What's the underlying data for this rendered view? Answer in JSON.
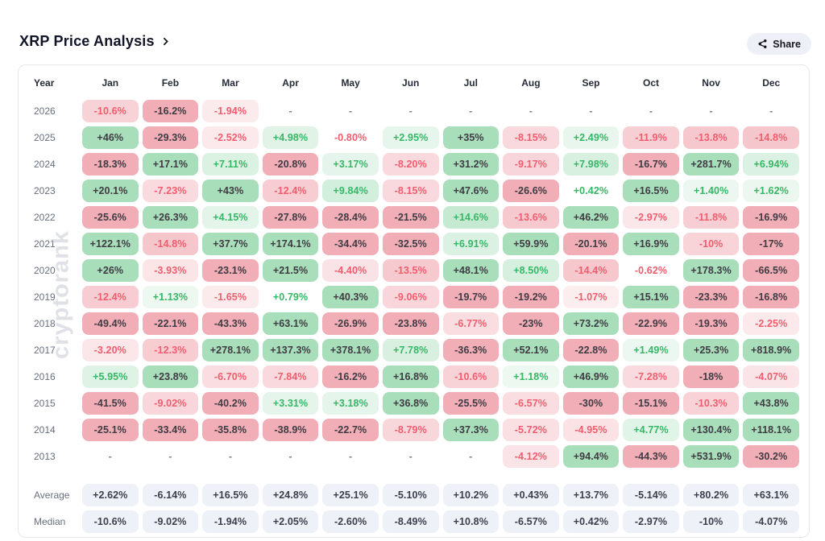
{
  "header": {
    "title": "XRP Price Analysis",
    "share_label": "Share"
  },
  "watermark": "cryptorank",
  "colors": {
    "positive_text": "#35b866",
    "negative_text": "#f25d6e",
    "strong_positive_bg": "#a9debb",
    "strong_negative_bg": "#f1aeb7",
    "strong_text": "#3e3b43",
    "dash_text": "#7b8494",
    "summary_bg": "#eef2f8"
  },
  "chart_data": {
    "type": "heatmap",
    "title": "XRP Price Analysis",
    "columns": [
      "Year",
      "Jan",
      "Feb",
      "Mar",
      "Apr",
      "May",
      "Jun",
      "Jul",
      "Aug",
      "Sep",
      "Oct",
      "Nov",
      "Dec"
    ],
    "rows": [
      {
        "year": "2026",
        "values": [
          "-10.6%",
          "-16.2%",
          "-1.94%",
          "-",
          "-",
          "-",
          "-",
          "-",
          "-",
          "-",
          "-",
          "-"
        ]
      },
      {
        "year": "2025",
        "values": [
          "+46%",
          "-29.3%",
          "-2.52%",
          "+4.98%",
          "-0.80%",
          "+2.95%",
          "+35%",
          "-8.15%",
          "+2.49%",
          "-11.9%",
          "-13.8%",
          "-14.8%"
        ]
      },
      {
        "year": "2024",
        "values": [
          "-18.3%",
          "+17.1%",
          "+7.11%",
          "-20.8%",
          "+3.17%",
          "-8.20%",
          "+31.2%",
          "-9.17%",
          "+7.98%",
          "-16.7%",
          "+281.7%",
          "+6.94%"
        ]
      },
      {
        "year": "2023",
        "values": [
          "+20.1%",
          "-7.23%",
          "+43%",
          "-12.4%",
          "+9.84%",
          "-8.15%",
          "+47.6%",
          "-26.6%",
          "+0.42%",
          "+16.5%",
          "+1.40%",
          "+1.62%"
        ]
      },
      {
        "year": "2022",
        "values": [
          "-25.6%",
          "+26.3%",
          "+4.15%",
          "-27.8%",
          "-28.4%",
          "-21.5%",
          "+14.6%",
          "-13.6%",
          "+46.2%",
          "-2.97%",
          "-11.8%",
          "-16.9%"
        ]
      },
      {
        "year": "2021",
        "values": [
          "+122.1%",
          "-14.8%",
          "+37.7%",
          "+174.1%",
          "-34.4%",
          "-32.5%",
          "+6.91%",
          "+59.9%",
          "-20.1%",
          "+16.9%",
          "-10%",
          "-17%"
        ]
      },
      {
        "year": "2020",
        "values": [
          "+26%",
          "-3.93%",
          "-23.1%",
          "+21.5%",
          "-4.40%",
          "-13.5%",
          "+48.1%",
          "+8.50%",
          "-14.4%",
          "-0.62%",
          "+178.3%",
          "-66.5%"
        ]
      },
      {
        "year": "2019",
        "values": [
          "-12.4%",
          "+1.13%",
          "-1.65%",
          "+0.79%",
          "+40.3%",
          "-9.06%",
          "-19.7%",
          "-19.2%",
          "-1.07%",
          "+15.1%",
          "-23.3%",
          "-16.8%"
        ]
      },
      {
        "year": "2018",
        "values": [
          "-49.4%",
          "-22.1%",
          "-43.3%",
          "+63.1%",
          "-26.9%",
          "-23.8%",
          "-6.77%",
          "-23%",
          "+73.2%",
          "-22.9%",
          "-19.3%",
          "-2.25%"
        ]
      },
      {
        "year": "2017",
        "values": [
          "-3.20%",
          "-12.3%",
          "+278.1%",
          "+137.3%",
          "+378.1%",
          "+7.78%",
          "-36.3%",
          "+52.1%",
          "-22.8%",
          "+1.49%",
          "+25.3%",
          "+818.9%"
        ]
      },
      {
        "year": "2016",
        "values": [
          "+5.95%",
          "+23.8%",
          "-6.70%",
          "-7.84%",
          "-16.2%",
          "+16.8%",
          "-10.6%",
          "+1.18%",
          "+46.9%",
          "-7.28%",
          "-18%",
          "-4.07%"
        ]
      },
      {
        "year": "2015",
        "values": [
          "-41.5%",
          "-9.02%",
          "-40.2%",
          "+3.31%",
          "+3.18%",
          "+36.8%",
          "-25.5%",
          "-6.57%",
          "-30%",
          "-15.1%",
          "-10.3%",
          "+43.8%"
        ]
      },
      {
        "year": "2014",
        "values": [
          "-25.1%",
          "-33.4%",
          "-35.8%",
          "-38.9%",
          "-22.7%",
          "-8.79%",
          "+37.3%",
          "-5.72%",
          "-4.95%",
          "+4.77%",
          "+130.4%",
          "+118.1%"
        ]
      },
      {
        "year": "2013",
        "values": [
          "-",
          "-",
          "-",
          "-",
          "-",
          "-",
          "-",
          "-4.12%",
          "+94.4%",
          "-44.3%",
          "+531.9%",
          "-30.2%"
        ]
      }
    ],
    "summary_rows": [
      {
        "label": "Average",
        "values": [
          "+2.62%",
          "-6.14%",
          "+16.5%",
          "+24.8%",
          "+25.1%",
          "-5.10%",
          "+10.2%",
          "+0.43%",
          "+13.7%",
          "-5.14%",
          "+80.2%",
          "+63.1%"
        ]
      },
      {
        "label": "Median",
        "values": [
          "-10.6%",
          "-9.02%",
          "-1.94%",
          "+2.05%",
          "-2.60%",
          "-8.49%",
          "+10.8%",
          "-6.57%",
          "+0.42%",
          "-2.97%",
          "-10%",
          "-4.07%"
        ]
      }
    ]
  }
}
